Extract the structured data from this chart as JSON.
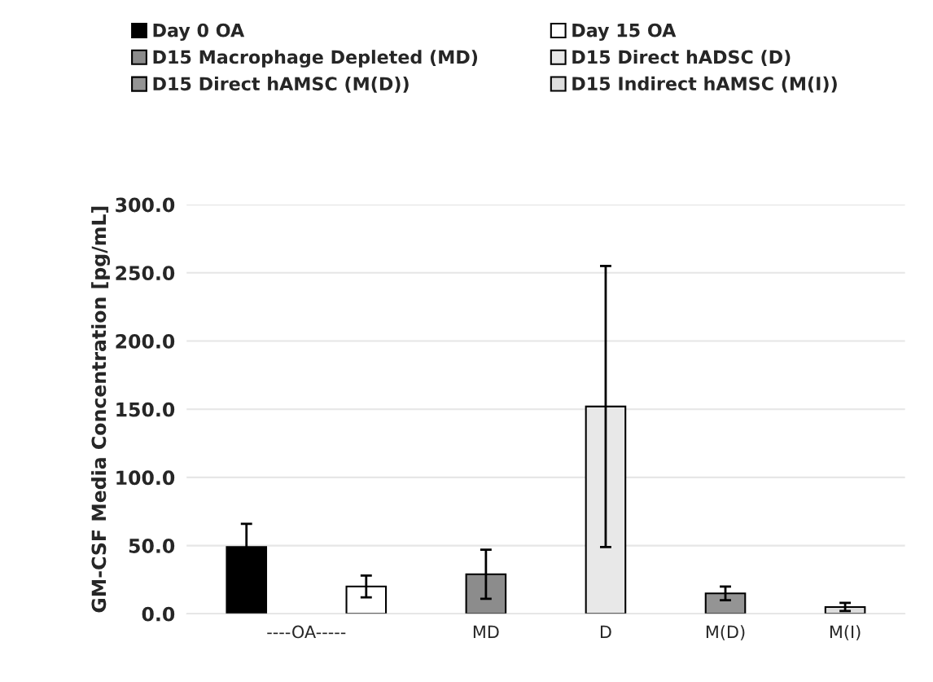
{
  "chart_data": {
    "type": "bar",
    "ylabel": "GM-CSF Media Concentration [pg/mL]",
    "categories": [
      "----OA-----",
      null,
      "MD",
      "D",
      "M(D)",
      "M(I)"
    ],
    "series": [
      {
        "name": "Day 0 OA",
        "color": "#000000",
        "values": [
          49,
          null,
          null,
          null,
          null,
          null
        ],
        "errors": [
          17,
          null,
          null,
          null,
          null,
          null
        ]
      },
      {
        "name": "Day 15 OA",
        "color": "#ffffff",
        "values": [
          null,
          20,
          null,
          null,
          null,
          null
        ],
        "errors": [
          null,
          8,
          null,
          null,
          null,
          null
        ]
      },
      {
        "name": "D15 Macrophage Depleted (MD)",
        "color": "#8c8c8c",
        "values": [
          null,
          null,
          29,
          null,
          null,
          null
        ],
        "errors": [
          null,
          null,
          18,
          null,
          null,
          null
        ]
      },
      {
        "name": "D15 Direct hADSC (D)",
        "color": "#e8e8e8",
        "values": [
          null,
          null,
          null,
          152,
          null,
          null
        ],
        "errors": [
          null,
          null,
          null,
          103,
          null,
          null
        ]
      },
      {
        "name": "D15 Direct hAMSC (M(D))",
        "color": "#949494",
        "values": [
          null,
          null,
          null,
          null,
          15,
          null
        ],
        "errors": [
          null,
          null,
          null,
          null,
          5,
          null
        ]
      },
      {
        "name": "D15 Indirect hAMSC (M(I))",
        "color": "#dddddd",
        "values": [
          null,
          null,
          null,
          null,
          null,
          5
        ],
        "errors": [
          null,
          null,
          null,
          null,
          null,
          3
        ]
      }
    ],
    "ylim": [
      0,
      300
    ],
    "yticks": [
      {
        "value": 0,
        "label": "0.0"
      },
      {
        "value": 50,
        "label": "50.0"
      },
      {
        "value": 100,
        "label": "100.0"
      },
      {
        "value": 150,
        "label": "150.0"
      },
      {
        "value": 200,
        "label": "200.0"
      },
      {
        "value": 250,
        "label": "250.0"
      },
      {
        "value": 300,
        "label": "300.0"
      }
    ],
    "grid": "y",
    "legend": "top"
  }
}
